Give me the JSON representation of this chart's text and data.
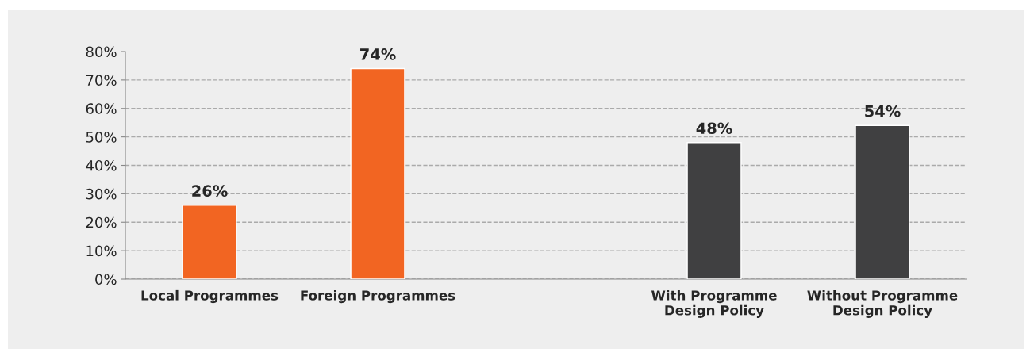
{
  "chart_data": {
    "type": "bar",
    "categories": [
      "Local Programmes",
      "Foreign Programmes",
      null,
      "With Programme Design Policy",
      "Without Programme Design Policy"
    ],
    "values": [
      26,
      74,
      null,
      48,
      54
    ],
    "colors": [
      "#f26522",
      "#f26522",
      null,
      "#404041",
      "#404041"
    ],
    "value_labels": [
      "26%",
      "74%",
      null,
      "48%",
      "54%"
    ],
    "ylim": [
      0,
      80
    ],
    "yticks": [
      {
        "value": 0,
        "label": "0%"
      },
      {
        "value": 10,
        "label": "10%"
      },
      {
        "value": 20,
        "label": "20%"
      },
      {
        "value": 30,
        "label": "30%"
      },
      {
        "value": 40,
        "label": "40%"
      },
      {
        "value": 50,
        "label": "50%"
      },
      {
        "value": 60,
        "label": "60%"
      },
      {
        "value": 70,
        "label": "70%"
      },
      {
        "value": 80,
        "label": "80%"
      }
    ],
    "grid": "y",
    "legend": false
  }
}
